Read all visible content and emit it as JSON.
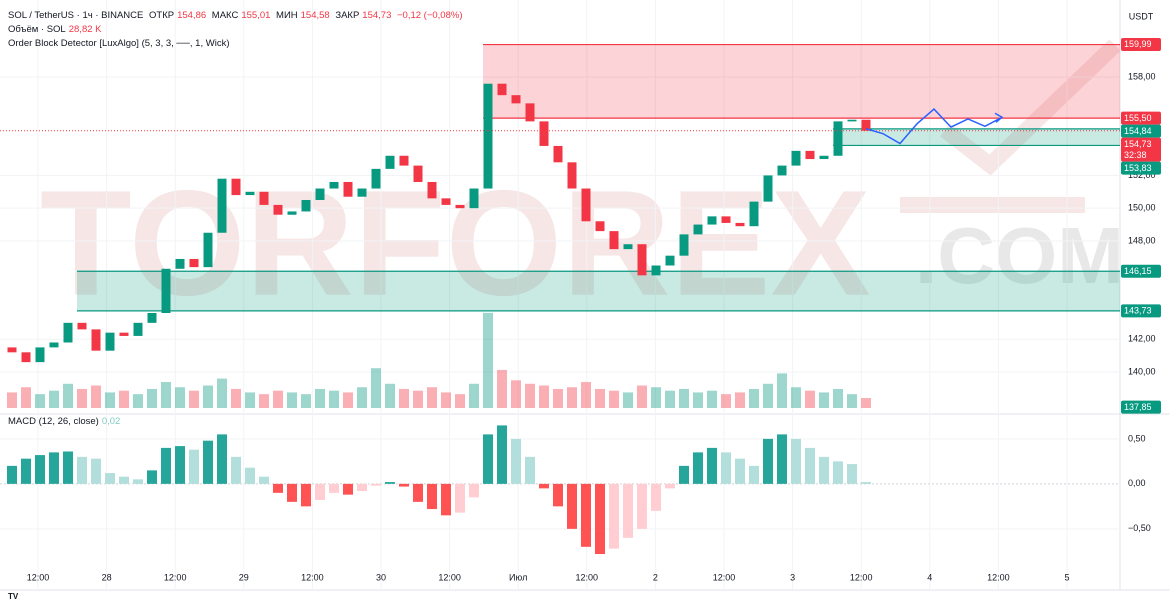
{
  "header": {
    "symbol": "SOL / TetherUS · 1ч · BINANCE",
    "ohlc": [
      {
        "label": "ОТКР",
        "value": "154,86"
      },
      {
        "label": "МАКС",
        "value": "155,01"
      },
      {
        "label": "МИН",
        "value": "154,58"
      },
      {
        "label": "ЗАКР",
        "value": "154,73"
      }
    ],
    "change": "−0,12 (−0,08%)",
    "volume_label": "Объём · SOL",
    "volume_value": "28,82 K",
    "indicator": "Order Block Detector [LuxAlgo] (5, 3, 3, ──, 1, Wick)",
    "logo": "TV"
  },
  "watermark": {
    "main": "TORFOREX",
    "suffix": ".COM"
  },
  "chart_data": {
    "type": "candlestick",
    "currency": "USDT",
    "up_color": "#089981",
    "down_color": "#f23645",
    "first_open": 141.5,
    "close": [
      141.2,
      140.6,
      141.5,
      141.8,
      143.0,
      142.6,
      141.3,
      142.4,
      142.2,
      143.0,
      143.6,
      146.3,
      146.9,
      146.4,
      148.5,
      151.8,
      150.8,
      151.0,
      150.2,
      149.6,
      149.8,
      150.5,
      151.2,
      151.6,
      150.7,
      151.2,
      152.4,
      153.2,
      152.6,
      151.6,
      150.6,
      150.2,
      150.0,
      151.2,
      157.6,
      156.9,
      156.4,
      155.3,
      153.8,
      152.8,
      151.2,
      149.2,
      148.6,
      147.5,
      147.8,
      145.9,
      146.5,
      147.1,
      148.4,
      149.0,
      149.5,
      149.1,
      148.9,
      150.4,
      152.0,
      152.6,
      153.5,
      153.0,
      153.2,
      155.3,
      155.4,
      154.73
    ],
    "volume": [
      45,
      60,
      40,
      50,
      70,
      55,
      65,
      45,
      50,
      40,
      55,
      75,
      60,
      50,
      65,
      85,
      55,
      45,
      40,
      50,
      45,
      40,
      55,
      50,
      45,
      60,
      115,
      70,
      55,
      50,
      60,
      45,
      40,
      70,
      275,
      110,
      80,
      70,
      65,
      55,
      60,
      75,
      55,
      50,
      45,
      65,
      60,
      50,
      55,
      45,
      50,
      40,
      45,
      55,
      70,
      100,
      60,
      50,
      45,
      55,
      40,
      28.82
    ],
    "vlim": [
      0,
      1150
    ],
    "ylim": [
      137.8,
      162.1
    ],
    "yticks": [
      {
        "value": 158,
        "label": "158,00"
      },
      {
        "value": 152,
        "label": "152,00"
      },
      {
        "value": 150,
        "label": "150,00"
      },
      {
        "value": 148,
        "label": "148,00"
      },
      {
        "value": 142,
        "label": "142,00"
      },
      {
        "value": 140,
        "label": "140,00"
      }
    ],
    "price_tags": [
      {
        "value": 159.99,
        "label": "159,99",
        "color": "#f23645"
      },
      {
        "value": 155.5,
        "label": "155,50",
        "color": "#f23645"
      },
      {
        "value": 154.84,
        "label": "154,84",
        "color": "#089981"
      },
      {
        "value": 154.73,
        "label": "154,73",
        "color": "#f23645"
      },
      {
        "value": 153.83,
        "label": "153,83",
        "color": "#089981"
      },
      {
        "value": 146.15,
        "label": "146,15",
        "color": "#089981"
      },
      {
        "value": 143.73,
        "label": "143,73",
        "color": "#089981"
      },
      {
        "value": 137.85,
        "label": "137,85",
        "color": "#089981"
      }
    ],
    "countdown": "32:38",
    "zones": [
      {
        "top_tag": 0,
        "bottom_tag": 1,
        "start": 34,
        "color": "#f23645"
      },
      {
        "top_tag": 2,
        "bottom_tag": 4,
        "start": 59,
        "color": "#089981"
      },
      {
        "top_tag": 5,
        "bottom_tag": 6,
        "start": 5,
        "color": "#089981"
      }
    ],
    "forecast": [
      154.85,
      154.55,
      153.95,
      155.15,
      156.05,
      154.95,
      155.45,
      155.0,
      155.55
    ],
    "forecast_color": "#2962ff",
    "time_labels": [
      "12:00",
      "28",
      "12:00",
      "29",
      "12:00",
      "30",
      "12:00",
      "Июл",
      "12:00",
      "2",
      "12:00",
      "3",
      "12:00",
      "4",
      "12:00",
      "5"
    ],
    "macd": {
      "label": "MACD (12, 26, close)",
      "last_label": "0,02",
      "values": [
        0.2,
        0.28,
        0.32,
        0.35,
        0.36,
        0.3,
        0.28,
        0.12,
        0.08,
        0.05,
        0.15,
        0.4,
        0.42,
        0.38,
        0.48,
        0.55,
        0.3,
        0.18,
        0.08,
        -0.1,
        -0.2,
        -0.25,
        -0.18,
        -0.1,
        -0.12,
        -0.08,
        -0.02,
        0.02,
        -0.03,
        -0.2,
        -0.28,
        -0.35,
        -0.32,
        -0.15,
        0.55,
        0.65,
        0.5,
        0.3,
        -0.05,
        -0.25,
        -0.5,
        -0.7,
        -0.78,
        -0.72,
        -0.6,
        -0.5,
        -0.3,
        -0.05,
        0.2,
        0.35,
        0.4,
        0.35,
        0.28,
        0.2,
        0.5,
        0.55,
        0.5,
        0.4,
        0.3,
        0.25,
        0.22,
        0.02
      ],
      "ylim": [
        -1.18,
        0.71
      ],
      "yticks": [
        {
          "value": 0.5,
          "label": "0,50"
        },
        {
          "value": 0,
          "label": "0,00"
        },
        {
          "value": -0.5,
          "label": "−0,50"
        }
      ]
    }
  }
}
